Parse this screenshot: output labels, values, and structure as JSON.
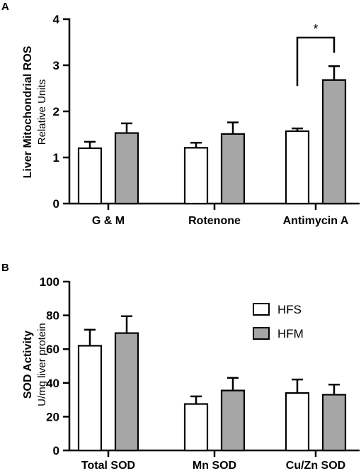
{
  "chart_data": [
    {
      "panel": "A",
      "type": "bar",
      "ylabel": "Liver Mitochondrial ROS",
      "ylabel_sub": "Relative Units",
      "categories": [
        "G & M",
        "Rotenone",
        "Antimycin A"
      ],
      "ylim": [
        0,
        4
      ],
      "yticks": [
        "0",
        "1",
        "2",
        "3",
        "4"
      ],
      "series": [
        {
          "name": "HFS",
          "values": [
            1.2,
            1.21,
            1.57
          ],
          "errors": [
            0.14,
            0.11,
            0.06
          ],
          "fill": "#ffffff"
        },
        {
          "name": "HFM",
          "values": [
            1.53,
            1.51,
            2.68
          ],
          "errors": [
            0.21,
            0.25,
            0.3
          ],
          "fill": "#a6a6a6"
        }
      ],
      "annotation": {
        "text": "*",
        "category_index": 2
      }
    },
    {
      "panel": "B",
      "type": "bar",
      "ylabel": "SOD Activity",
      "ylabel_sub": "U/mg liver protein",
      "categories": [
        "Total SOD",
        "Mn SOD",
        "Cu/Zn SOD"
      ],
      "ylim": [
        0,
        100
      ],
      "yticks": [
        "0",
        "20",
        "40",
        "60",
        "80",
        "100"
      ],
      "series": [
        {
          "name": "HFS",
          "values": [
            62,
            27.5,
            34
          ],
          "errors": [
            9.5,
            4.5,
            8
          ],
          "fill": "#ffffff"
        },
        {
          "name": "HFM",
          "values": [
            69.5,
            35.5,
            33
          ],
          "errors": [
            10,
            7.5,
            6
          ],
          "fill": "#a6a6a6"
        }
      ],
      "legend": {
        "entries": [
          "HFS",
          "HFM"
        ],
        "position": "top-right"
      }
    }
  ]
}
